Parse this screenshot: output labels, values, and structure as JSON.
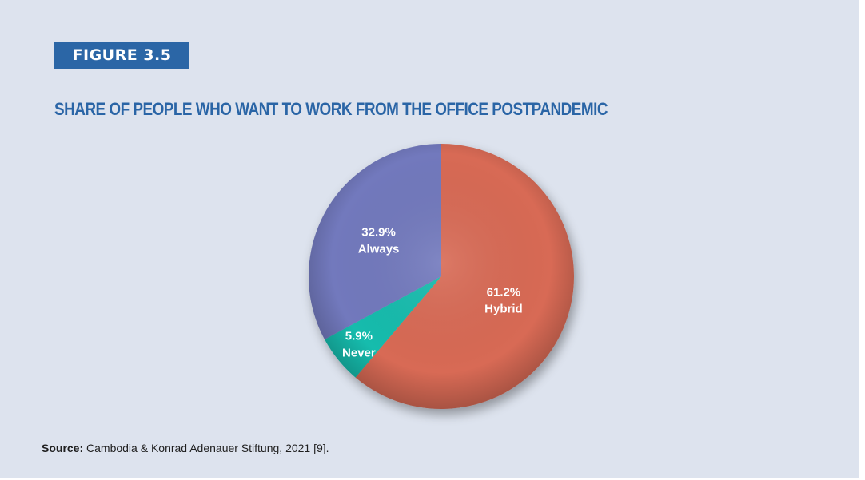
{
  "figure": {
    "label": "FIGURE 3.5"
  },
  "source": {
    "prefix": "Source:",
    "text": " Cambodia & Konrad Adenauer Stiftung, 2021 [9]."
  },
  "chart_data": {
    "type": "pie",
    "title": "SHARE OF PEOPLE WHO WANT TO WORK FROM THE OFFICE POSTPANDEMIC",
    "slices": [
      {
        "label": "Hybrid",
        "value": 61.2,
        "value_text": "61.2%",
        "color": "#d86a55"
      },
      {
        "label": "Never",
        "value": 5.9,
        "value_text": "5.9%",
        "color": "#17bcad"
      },
      {
        "label": "Always",
        "value": 32.9,
        "value_text": "32.9%",
        "color": "#7279bd"
      }
    ],
    "start_angle": "12 o'clock",
    "direction": "clockwise"
  }
}
